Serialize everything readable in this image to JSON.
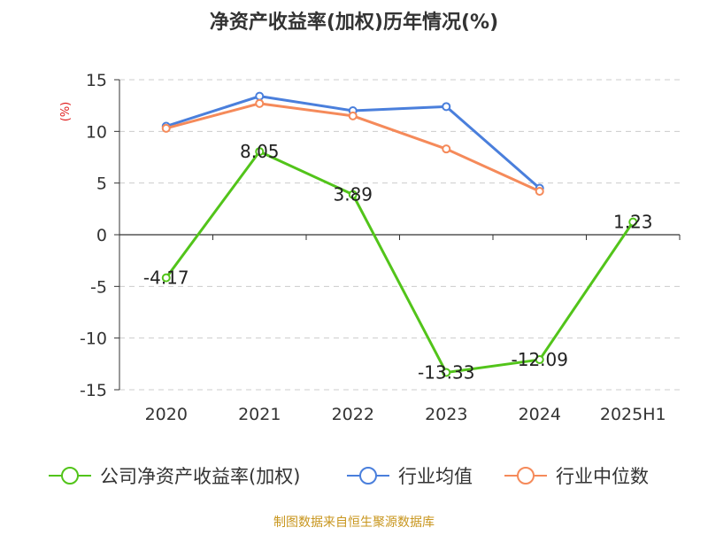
{
  "chart_data": {
    "type": "line",
    "title": "净资产收益率(加权)历年情况(%)",
    "ylabel": "(%)",
    "categories": [
      "2020",
      "2021",
      "2022",
      "2023",
      "2024",
      "2025H1"
    ],
    "ylim": [
      -15,
      15
    ],
    "yticks": [
      15,
      10,
      5,
      0,
      -5,
      -10,
      -15
    ],
    "grid": true,
    "legend_position": "bottom",
    "series": [
      {
        "name": "公司净资产收益率(加权)",
        "color": "#52c41a",
        "values": [
          -4.17,
          8.05,
          3.89,
          -13.33,
          -12.09,
          1.23
        ],
        "data_labels": [
          "-4.17",
          "8.05",
          "3.89",
          "-13.33",
          "-12.09",
          "1.23"
        ]
      },
      {
        "name": "行业均值",
        "color": "#4a7fdc",
        "values": [
          10.5,
          13.4,
          12.0,
          12.4,
          4.5,
          null
        ]
      },
      {
        "name": "行业中位数",
        "color": "#f58a5a",
        "values": [
          10.3,
          12.7,
          11.5,
          8.3,
          4.2,
          null
        ]
      }
    ],
    "source": "制图数据来自恒生聚源数据库"
  }
}
